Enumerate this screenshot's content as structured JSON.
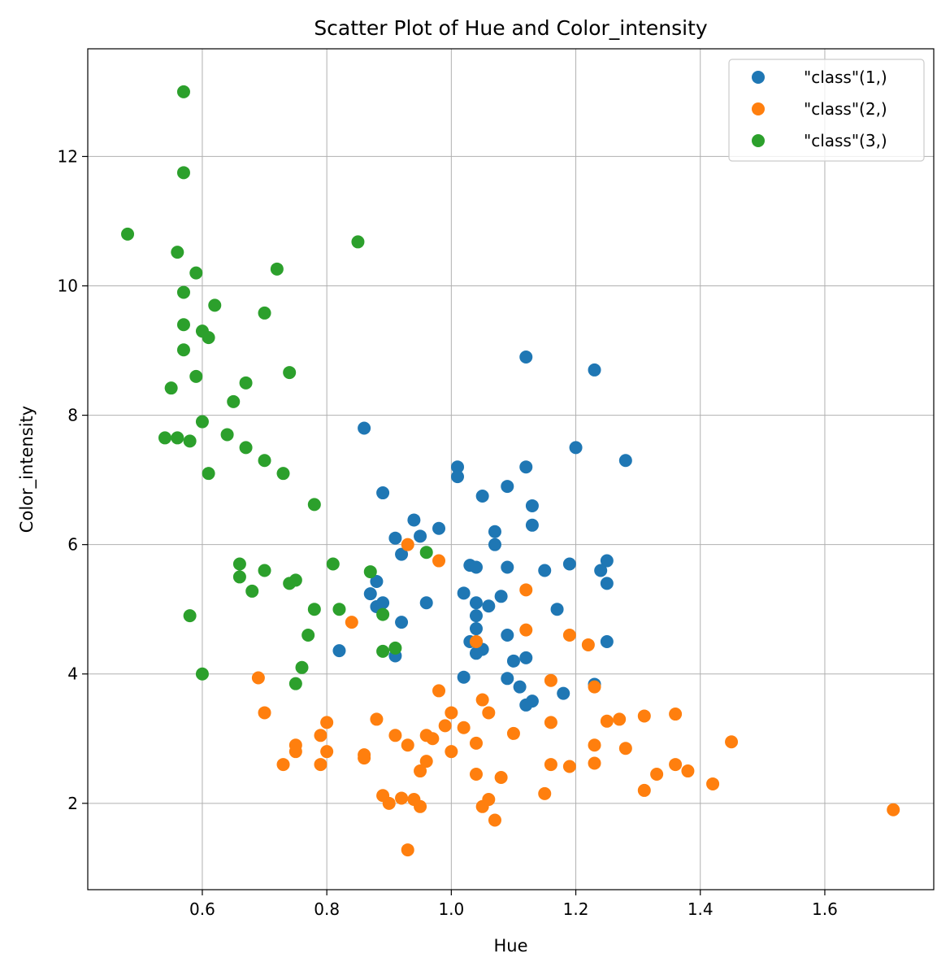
{
  "chart_data": {
    "type": "scatter",
    "title": "Scatter Plot of Hue and Color_intensity",
    "xlabel": "Hue",
    "ylabel": "Color_intensity",
    "xlim": [
      0.416,
      1.775
    ],
    "ylim": [
      0.665,
      13.665
    ],
    "xticks": [
      0.6,
      0.8,
      1.0,
      1.2,
      1.4,
      1.6
    ],
    "xtick_labels": [
      "0.6",
      "0.8",
      "1.0",
      "1.2",
      "1.4",
      "1.6"
    ],
    "yticks": [
      2,
      4,
      6,
      8,
      10,
      12
    ],
    "ytick_labels": [
      "2",
      "4",
      "6",
      "8",
      "10",
      "12"
    ],
    "grid": true,
    "legend_position": "top-right",
    "series": [
      {
        "name": "\"class\"(1,)",
        "color": "#1f77b4",
        "points": [
          [
            0.86,
            7.8
          ],
          [
            0.89,
            6.8
          ],
          [
            0.94,
            6.38
          ],
          [
            0.95,
            6.13
          ],
          [
            0.91,
            6.1
          ],
          [
            0.92,
            5.85
          ],
          [
            0.98,
            6.25
          ],
          [
            0.88,
            5.43
          ],
          [
            0.87,
            5.24
          ],
          [
            0.88,
            5.04
          ],
          [
            0.89,
            5.1
          ],
          [
            0.96,
            5.1
          ],
          [
            0.92,
            4.8
          ],
          [
            0.82,
            4.36
          ],
          [
            0.91,
            4.28
          ],
          [
            1.01,
            7.2
          ],
          [
            1.01,
            7.05
          ],
          [
            1.05,
            6.75
          ],
          [
            1.09,
            6.9
          ],
          [
            1.12,
            7.2
          ],
          [
            1.13,
            6.6
          ],
          [
            1.13,
            6.3
          ],
          [
            1.07,
            6.2
          ],
          [
            1.07,
            6.0
          ],
          [
            1.03,
            5.68
          ],
          [
            1.04,
            5.65
          ],
          [
            1.09,
            5.65
          ],
          [
            1.02,
            5.25
          ],
          [
            1.04,
            5.1
          ],
          [
            1.06,
            5.05
          ],
          [
            1.08,
            5.2
          ],
          [
            1.04,
            4.9
          ],
          [
            1.04,
            4.7
          ],
          [
            1.03,
            4.5
          ],
          [
            1.04,
            4.5
          ],
          [
            1.05,
            4.38
          ],
          [
            1.04,
            4.32
          ],
          [
            1.09,
            4.6
          ],
          [
            1.1,
            4.2
          ],
          [
            1.12,
            4.25
          ],
          [
            1.02,
            3.95
          ],
          [
            1.09,
            3.93
          ],
          [
            1.11,
            3.8
          ],
          [
            1.13,
            3.58
          ],
          [
            1.12,
            3.52
          ],
          [
            1.18,
            3.7
          ],
          [
            1.12,
            8.9
          ],
          [
            1.23,
            8.7
          ],
          [
            1.2,
            7.5
          ],
          [
            1.28,
            7.3
          ],
          [
            1.15,
            5.6
          ],
          [
            1.19,
            5.7
          ],
          [
            1.24,
            5.6
          ],
          [
            1.25,
            5.75
          ],
          [
            1.25,
            5.4
          ],
          [
            1.17,
            5.0
          ],
          [
            1.25,
            4.5
          ],
          [
            1.23,
            3.84
          ]
        ]
      },
      {
        "name": "\"class\"(2,)",
        "color": "#ff7f0e",
        "points": [
          [
            0.69,
            3.94
          ],
          [
            0.7,
            3.4
          ],
          [
            0.75,
            2.9
          ],
          [
            0.75,
            2.8
          ],
          [
            0.73,
            2.6
          ],
          [
            0.79,
            3.05
          ],
          [
            0.8,
            3.25
          ],
          [
            0.8,
            2.8
          ],
          [
            0.79,
            2.6
          ],
          [
            0.84,
            4.8
          ],
          [
            0.86,
            2.75
          ],
          [
            0.86,
            2.7
          ],
          [
            0.88,
            3.3
          ],
          [
            0.89,
            2.12
          ],
          [
            0.9,
            2.0
          ],
          [
            0.91,
            3.05
          ],
          [
            0.92,
            2.08
          ],
          [
            0.93,
            2.9
          ],
          [
            0.93,
            1.28
          ],
          [
            0.93,
            6.0
          ],
          [
            0.94,
            2.06
          ],
          [
            0.95,
            1.95
          ],
          [
            0.95,
            2.5
          ],
          [
            0.96,
            3.05
          ],
          [
            0.96,
            2.65
          ],
          [
            0.97,
            3.0
          ],
          [
            0.98,
            5.75
          ],
          [
            0.98,
            3.74
          ],
          [
            0.99,
            3.2
          ],
          [
            1.0,
            3.4
          ],
          [
            1.0,
            2.8
          ],
          [
            1.02,
            3.17
          ],
          [
            1.04,
            2.93
          ],
          [
            1.04,
            2.45
          ],
          [
            1.04,
            4.5
          ],
          [
            1.05,
            3.6
          ],
          [
            1.05,
            1.95
          ],
          [
            1.06,
            3.4
          ],
          [
            1.06,
            2.06
          ],
          [
            1.07,
            1.74
          ],
          [
            1.08,
            2.4
          ],
          [
            1.1,
            3.08
          ],
          [
            1.12,
            5.3
          ],
          [
            1.12,
            4.68
          ],
          [
            1.15,
            2.15
          ],
          [
            1.16,
            3.9
          ],
          [
            1.16,
            3.25
          ],
          [
            1.16,
            2.6
          ],
          [
            1.19,
            4.6
          ],
          [
            1.19,
            2.57
          ],
          [
            1.22,
            4.45
          ],
          [
            1.23,
            3.8
          ],
          [
            1.23,
            2.9
          ],
          [
            1.23,
            2.62
          ],
          [
            1.25,
            3.27
          ],
          [
            1.27,
            3.3
          ],
          [
            1.28,
            2.85
          ],
          [
            1.31,
            3.35
          ],
          [
            1.31,
            2.2
          ],
          [
            1.33,
            2.45
          ],
          [
            1.36,
            3.38
          ],
          [
            1.36,
            2.6
          ],
          [
            1.38,
            2.5
          ],
          [
            1.42,
            2.3
          ],
          [
            1.45,
            2.95
          ],
          [
            1.71,
            1.9
          ]
        ]
      },
      {
        "name": "\"class\"(3,)",
        "color": "#2ca02c",
        "points": [
          [
            0.57,
            13.0
          ],
          [
            0.57,
            11.75
          ],
          [
            0.48,
            10.8
          ],
          [
            0.56,
            10.52
          ],
          [
            0.59,
            10.2
          ],
          [
            0.57,
            9.9
          ],
          [
            0.57,
            9.4
          ],
          [
            0.6,
            9.3
          ],
          [
            0.61,
            9.2
          ],
          [
            0.57,
            9.01
          ],
          [
            0.62,
            9.7
          ],
          [
            0.59,
            8.6
          ],
          [
            0.55,
            8.42
          ],
          [
            0.54,
            7.65
          ],
          [
            0.56,
            7.65
          ],
          [
            0.58,
            7.6
          ],
          [
            0.6,
            7.9
          ],
          [
            0.61,
            7.1
          ],
          [
            0.64,
            7.7
          ],
          [
            0.65,
            8.21
          ],
          [
            0.67,
            8.5
          ],
          [
            0.67,
            7.5
          ],
          [
            0.7,
            9.58
          ],
          [
            0.72,
            10.26
          ],
          [
            0.74,
            8.66
          ],
          [
            0.7,
            7.3
          ],
          [
            0.73,
            7.1
          ],
          [
            0.78,
            6.62
          ],
          [
            0.85,
            10.68
          ],
          [
            0.66,
            5.7
          ],
          [
            0.66,
            5.5
          ],
          [
            0.68,
            5.28
          ],
          [
            0.7,
            5.6
          ],
          [
            0.74,
            5.4
          ],
          [
            0.75,
            5.45
          ],
          [
            0.58,
            4.9
          ],
          [
            0.6,
            4.0
          ],
          [
            0.76,
            4.1
          ],
          [
            0.75,
            3.85
          ],
          [
            0.77,
            4.6
          ],
          [
            0.78,
            5.0
          ],
          [
            0.81,
            5.7
          ],
          [
            0.82,
            5.0
          ],
          [
            0.87,
            5.58
          ],
          [
            0.89,
            4.92
          ],
          [
            0.89,
            4.35
          ],
          [
            0.91,
            4.4
          ],
          [
            0.96,
            5.88
          ]
        ]
      }
    ]
  }
}
